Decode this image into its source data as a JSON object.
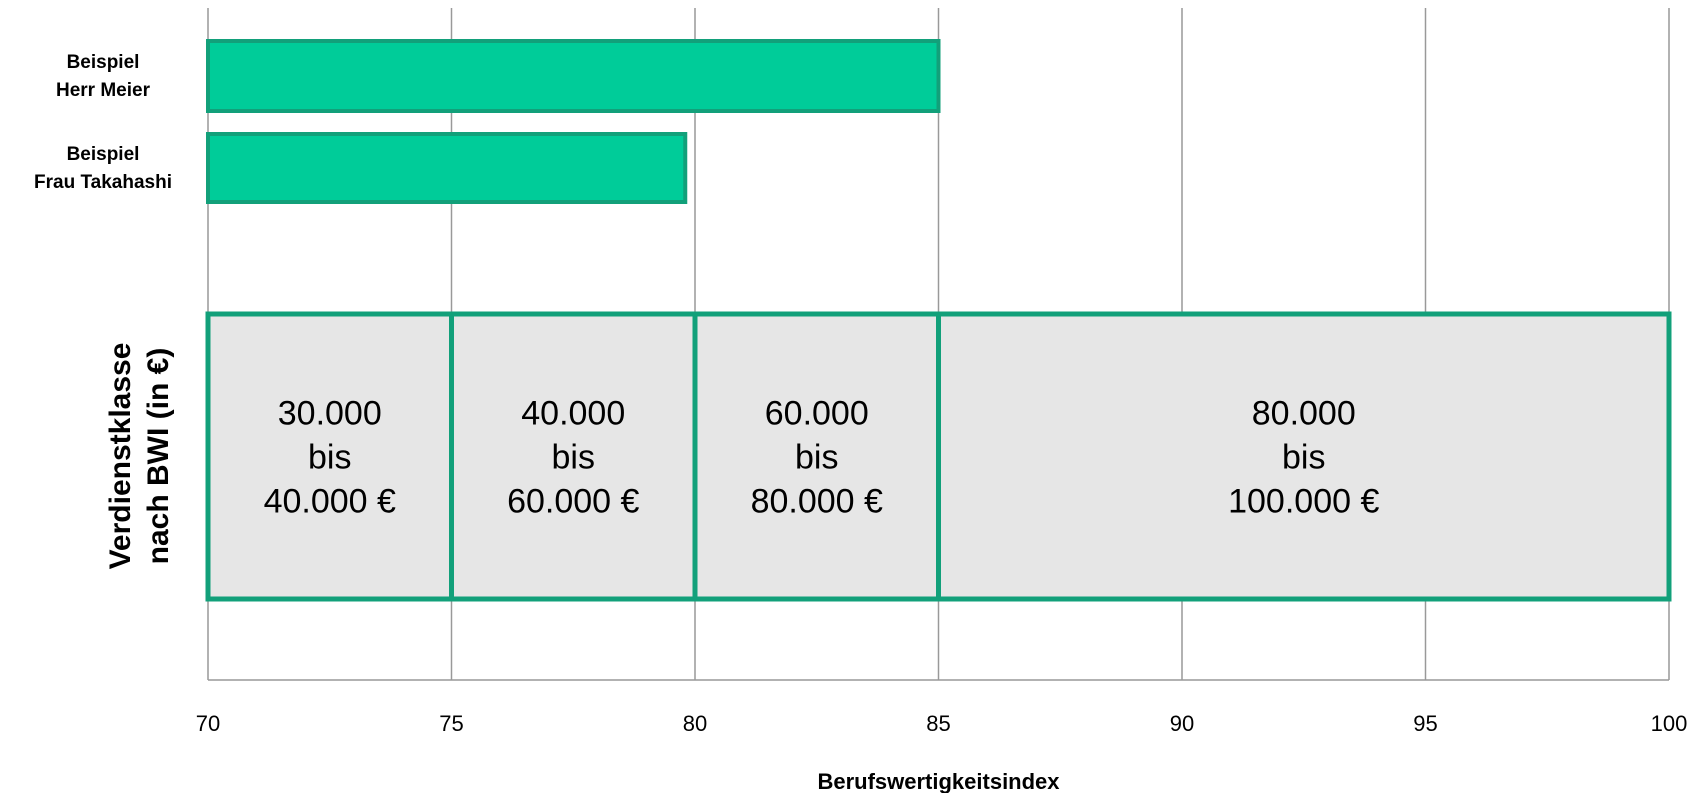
{
  "chart_data": {
    "type": "bar",
    "orientation": "horizontal",
    "xlabel": "Berufswertigkeitsindex",
    "ylabel": [
      "Verdienstklasse",
      "nach BWI (in €)"
    ],
    "xlim": [
      70,
      100
    ],
    "xticks": [
      70,
      75,
      80,
      85,
      90,
      95,
      100
    ],
    "grid": true,
    "categories": [
      [
        "Beispiel",
        "Herr Meier"
      ],
      [
        "Beispiel",
        "Frau Takahashi"
      ]
    ],
    "values": [
      85,
      79.8
    ],
    "bands": [
      {
        "from": 70,
        "to": 75,
        "label": [
          "30.000",
          "bis",
          "40.000 €"
        ]
      },
      {
        "from": 75,
        "to": 80,
        "label": [
          "40.000",
          "bis",
          "60.000 €"
        ]
      },
      {
        "from": 80,
        "to": 85,
        "label": [
          "60.000",
          "bis",
          "80.000 €"
        ]
      },
      {
        "from": 85,
        "to": 100,
        "label": [
          "80.000",
          "bis",
          "100.000 €"
        ]
      }
    ],
    "colors": {
      "bar_fill": "#00cc99",
      "bar_stroke": "#12a07a",
      "band_fill": "#e6e6e6",
      "band_stroke": "#12a07a",
      "grid": "#999999"
    }
  }
}
